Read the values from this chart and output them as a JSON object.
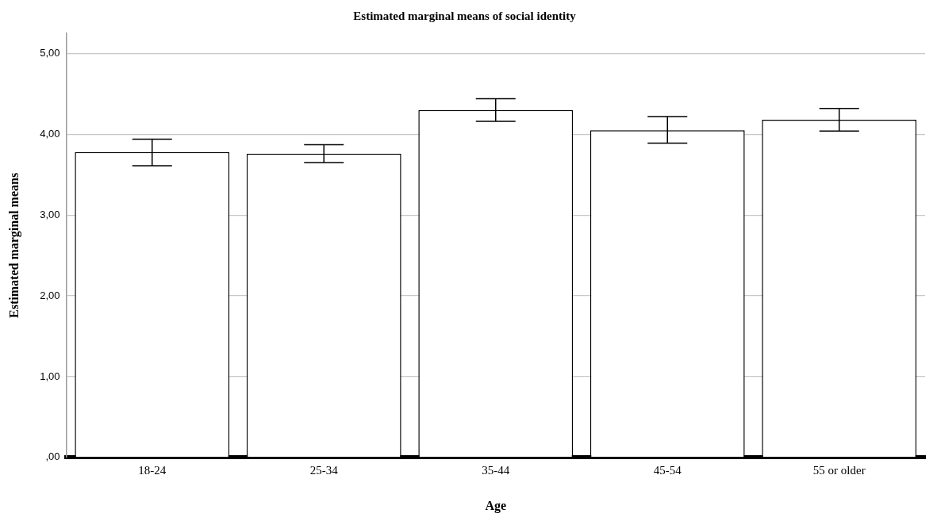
{
  "chart_data": {
    "type": "bar",
    "title": "Estimated marginal means of social identity",
    "xlabel": "Age",
    "ylabel": "Estimated marginal means",
    "categories": [
      "18-24",
      "25-34",
      "35-44",
      "45-54",
      "55 or older"
    ],
    "values": [
      3.78,
      3.76,
      4.3,
      4.05,
      4.18
    ],
    "errors": [
      [
        3.61,
        3.94
      ],
      [
        3.65,
        3.87
      ],
      [
        4.16,
        4.44
      ],
      [
        3.89,
        4.22
      ],
      [
        4.04,
        4.32
      ]
    ],
    "color": "#ffffff",
    "ylim": [
      0,
      5.25
    ],
    "yticks": [
      {
        "value": 0,
        "label": ",00"
      },
      {
        "value": 1,
        "label": "1,00"
      },
      {
        "value": 2,
        "label": "2,00"
      },
      {
        "value": 3,
        "label": "3,00"
      },
      {
        "value": 4,
        "label": "4,00"
      },
      {
        "value": 5,
        "label": "5,00"
      }
    ],
    "grid": "y",
    "legend": false
  }
}
